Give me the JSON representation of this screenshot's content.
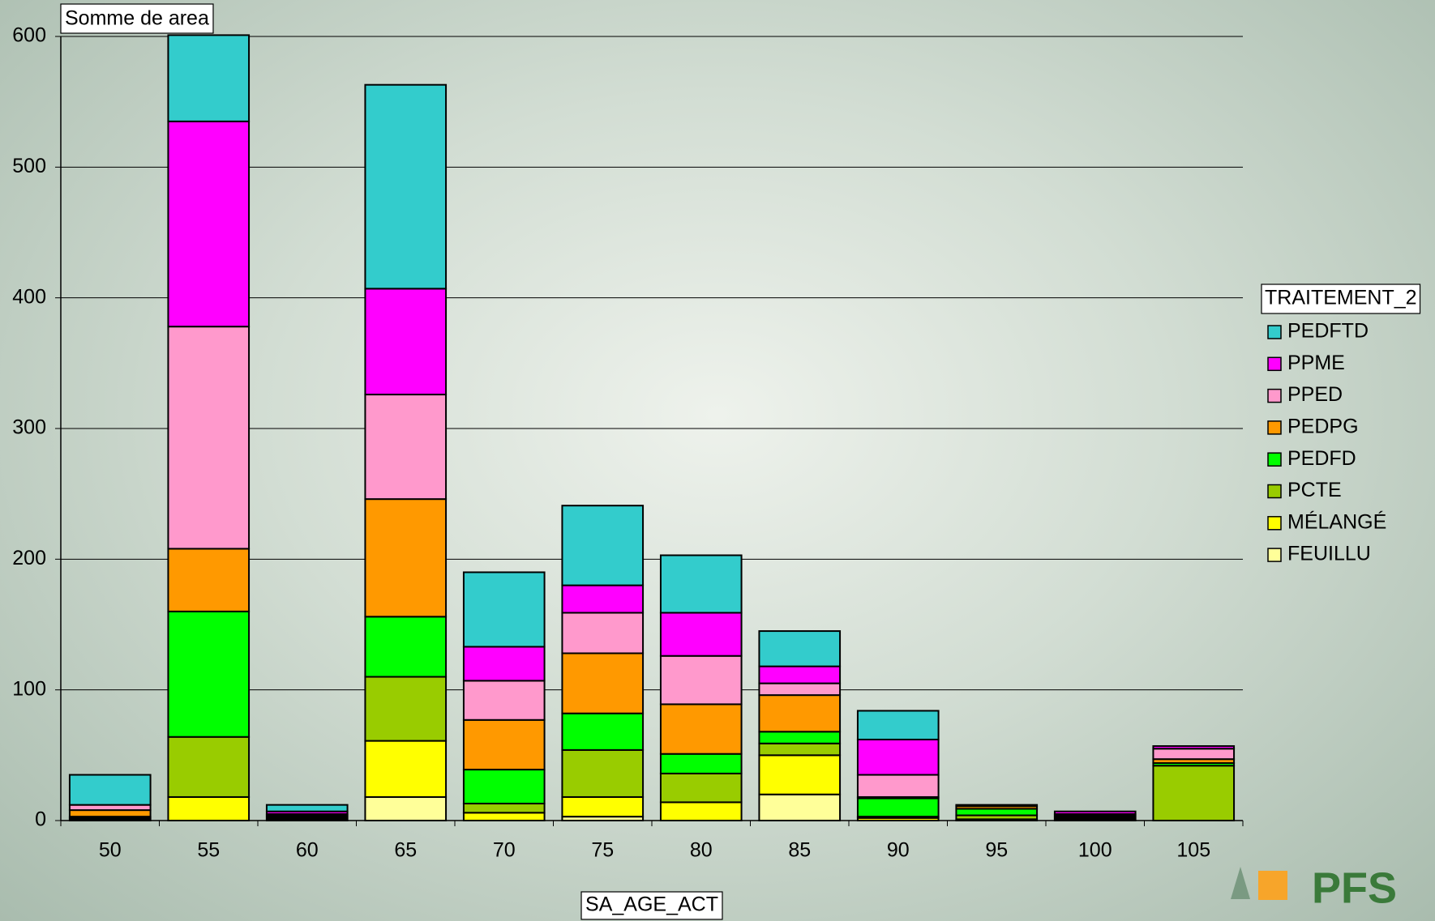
{
  "chart_data": {
    "type": "stacked_bar",
    "title": "Somme de area",
    "x_label": "SA_AGE_ACT",
    "legend_title": "TRAITEMENT_2",
    "logo_text": "PFS",
    "categories": [
      "50",
      "55",
      "60",
      "65",
      "70",
      "75",
      "80",
      "85",
      "90",
      "95",
      "100",
      "105"
    ],
    "series": [
      {
        "name": "FEUILLU",
        "color": "#ffff99",
        "values": [
          0,
          0,
          0,
          18,
          0,
          3,
          0,
          20,
          0,
          0,
          0,
          0
        ]
      },
      {
        "name": "MÉLANGÉ",
        "color": "#ffff00",
        "values": [
          1,
          18,
          1,
          43,
          6,
          15,
          14,
          30,
          2,
          1,
          1,
          0
        ]
      },
      {
        "name": "PCTE",
        "color": "#99cc00",
        "values": [
          1,
          46,
          1,
          49,
          7,
          36,
          22,
          9,
          1,
          3,
          1,
          42
        ]
      },
      {
        "name": "PEDFD",
        "color": "#00ff00",
        "values": [
          1,
          96,
          1,
          46,
          26,
          28,
          15,
          9,
          14,
          5,
          1,
          2
        ]
      },
      {
        "name": "PEDPG",
        "color": "#ff9900",
        "values": [
          5,
          48,
          1,
          90,
          38,
          46,
          38,
          28,
          1,
          2,
          1,
          3
        ]
      },
      {
        "name": "PPED",
        "color": "#ff99cc",
        "values": [
          4,
          170,
          1,
          80,
          30,
          31,
          37,
          9,
          17,
          0,
          1,
          8
        ]
      },
      {
        "name": "PPME",
        "color": "#ff00ff",
        "values": [
          0,
          157,
          2,
          81,
          26,
          21,
          33,
          13,
          27,
          0,
          2,
          2
        ]
      },
      {
        "name": "PEDFTD",
        "color": "#33cccc",
        "values": [
          23,
          66,
          5,
          156,
          57,
          61,
          44,
          27,
          22,
          1,
          0,
          0
        ]
      }
    ],
    "ylim": [
      0,
      600
    ],
    "yticks": [
      0,
      100,
      200,
      300,
      400,
      500,
      600
    ],
    "grid": true
  }
}
